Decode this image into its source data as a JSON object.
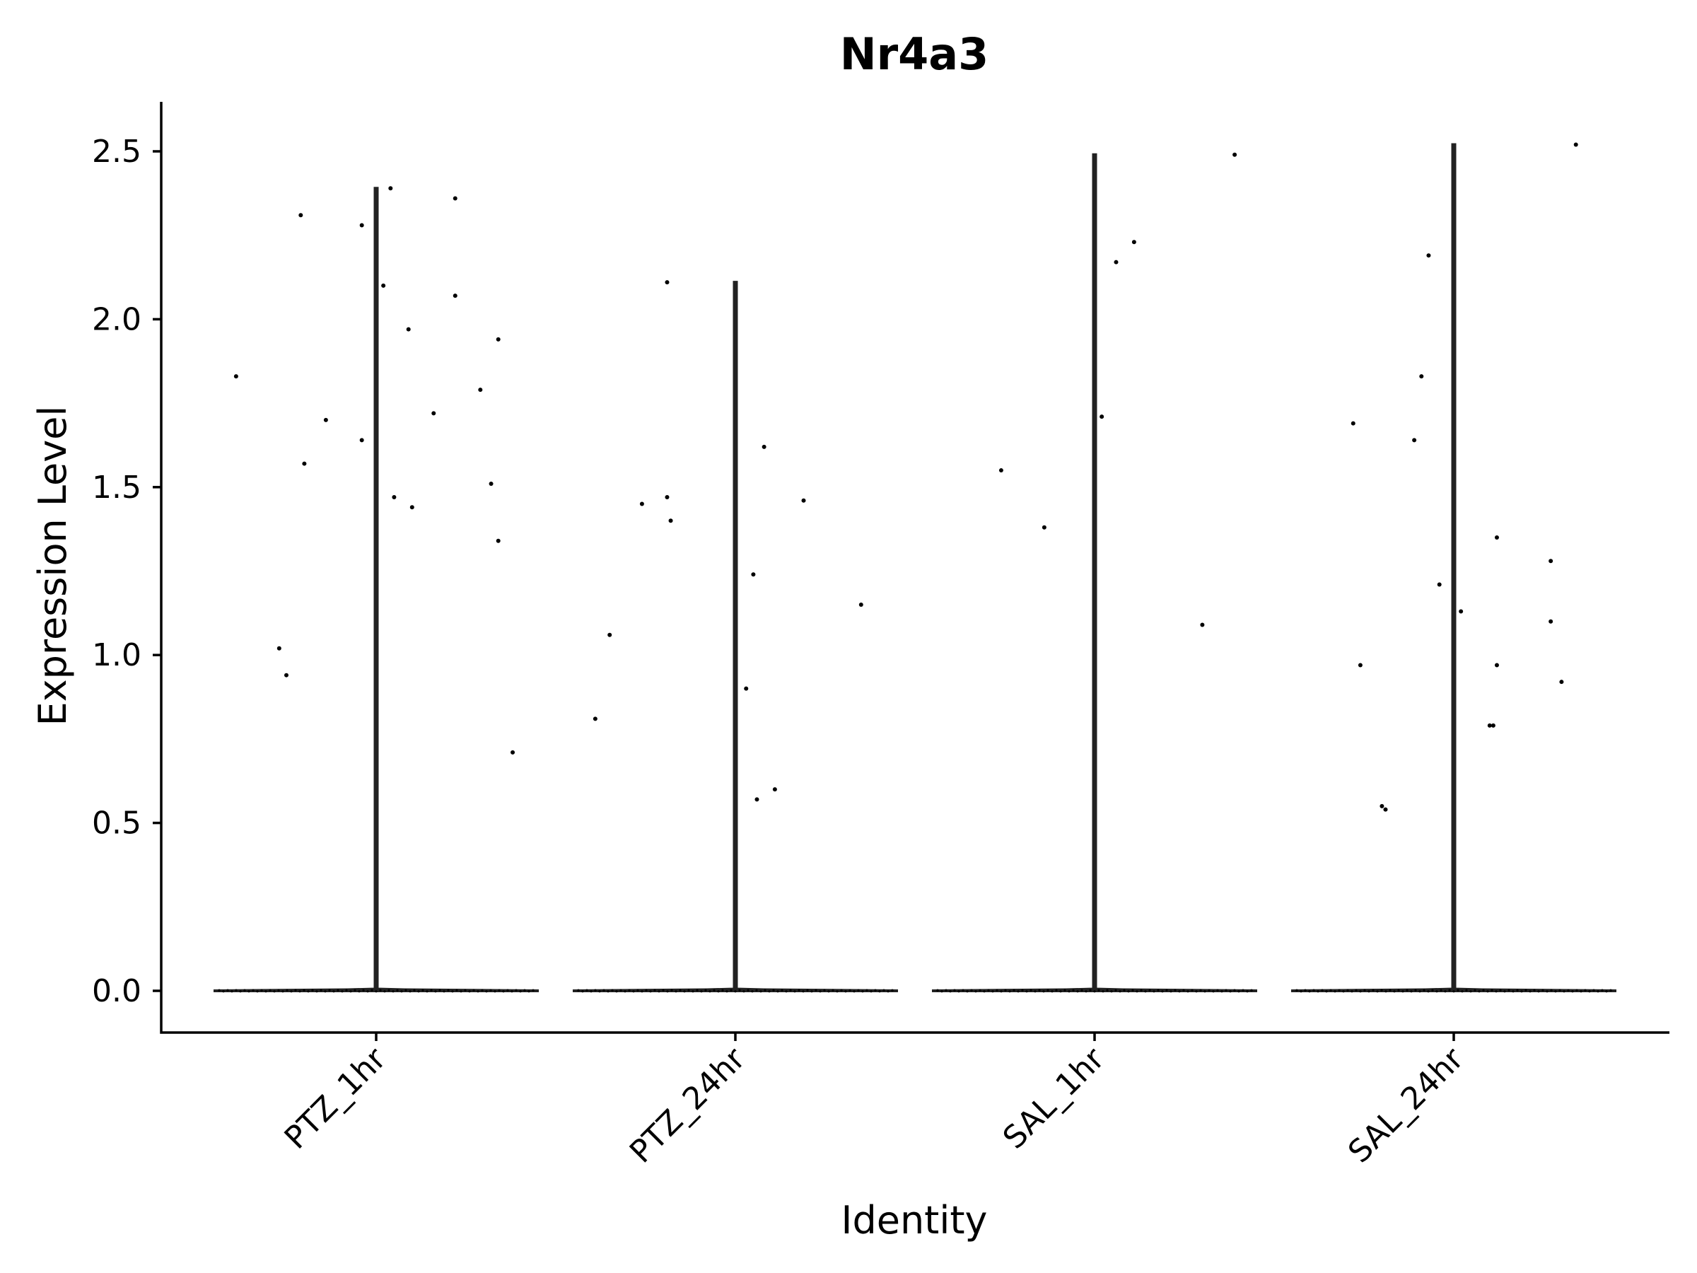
{
  "chart_data": {
    "type": "violin",
    "title": "Nr4a3",
    "xlabel": "Identity",
    "ylabel": "Expression Level",
    "ylim": [
      -0.12,
      2.65
    ],
    "yticks": [
      0.0,
      0.5,
      1.0,
      1.5,
      2.0,
      2.5
    ],
    "ytick_labels": [
      "0.0",
      "0.5",
      "1.0",
      "1.5",
      "2.0",
      "2.5"
    ],
    "grid": false,
    "legend": "none",
    "categories": [
      "PTZ_1hr",
      "PTZ_24hr",
      "SAL_1hr",
      "SAL_24hr"
    ],
    "series": [
      {
        "category": "PTZ_1hr",
        "max": 2.39,
        "points": [
          {
            "x_offset": -0.39,
            "y": 1.83
          },
          {
            "x_offset": -0.21,
            "y": 2.31
          },
          {
            "x_offset": -0.2,
            "y": 1.57
          },
          {
            "x_offset": -0.27,
            "y": 1.02
          },
          {
            "x_offset": -0.25,
            "y": 0.94
          },
          {
            "x_offset": -0.14,
            "y": 1.7
          },
          {
            "x_offset": -0.04,
            "y": 2.28
          },
          {
            "x_offset": -0.04,
            "y": 1.64
          },
          {
            "x_offset": 0.02,
            "y": 2.1
          },
          {
            "x_offset": 0.04,
            "y": 2.39
          },
          {
            "x_offset": 0.05,
            "y": 1.47
          },
          {
            "x_offset": 0.09,
            "y": 1.97
          },
          {
            "x_offset": 0.1,
            "y": 1.44
          },
          {
            "x_offset": 0.16,
            "y": 1.72
          },
          {
            "x_offset": 0.22,
            "y": 2.36
          },
          {
            "x_offset": 0.22,
            "y": 2.07
          },
          {
            "x_offset": 0.29,
            "y": 1.79
          },
          {
            "x_offset": 0.32,
            "y": 1.51
          },
          {
            "x_offset": 0.34,
            "y": 1.94
          },
          {
            "x_offset": 0.34,
            "y": 1.34
          },
          {
            "x_offset": 0.38,
            "y": 0.71
          }
        ]
      },
      {
        "category": "PTZ_24hr",
        "max": 2.11,
        "points": [
          {
            "x_offset": -0.39,
            "y": 0.81
          },
          {
            "x_offset": -0.35,
            "y": 1.06
          },
          {
            "x_offset": -0.26,
            "y": 1.45
          },
          {
            "x_offset": -0.19,
            "y": 2.11
          },
          {
            "x_offset": -0.19,
            "y": 1.47
          },
          {
            "x_offset": -0.18,
            "y": 1.4
          },
          {
            "x_offset": 0.03,
            "y": 0.9
          },
          {
            "x_offset": 0.05,
            "y": 1.24
          },
          {
            "x_offset": 0.06,
            "y": 0.57
          },
          {
            "x_offset": 0.08,
            "y": 1.62
          },
          {
            "x_offset": 0.11,
            "y": 0.6
          },
          {
            "x_offset": 0.19,
            "y": 1.46
          },
          {
            "x_offset": 0.35,
            "y": 1.15
          }
        ]
      },
      {
        "category": "SAL_1hr",
        "max": 2.49,
        "points": [
          {
            "x_offset": -0.26,
            "y": 1.55
          },
          {
            "x_offset": -0.14,
            "y": 1.38
          },
          {
            "x_offset": 0.02,
            "y": 1.71
          },
          {
            "x_offset": 0.06,
            "y": 2.17
          },
          {
            "x_offset": 0.11,
            "y": 2.23
          },
          {
            "x_offset": 0.3,
            "y": 1.09
          },
          {
            "x_offset": 0.39,
            "y": 2.49
          }
        ]
      },
      {
        "category": "SAL_24hr",
        "max": 2.52,
        "points": [
          {
            "x_offset": -0.28,
            "y": 1.69
          },
          {
            "x_offset": -0.26,
            "y": 0.97
          },
          {
            "x_offset": -0.2,
            "y": 0.55
          },
          {
            "x_offset": -0.19,
            "y": 0.54
          },
          {
            "x_offset": -0.11,
            "y": 1.64
          },
          {
            "x_offset": -0.09,
            "y": 1.83
          },
          {
            "x_offset": -0.07,
            "y": 2.19
          },
          {
            "x_offset": -0.04,
            "y": 1.21
          },
          {
            "x_offset": 0.02,
            "y": 1.13
          },
          {
            "x_offset": 0.12,
            "y": 1.35
          },
          {
            "x_offset": 0.12,
            "y": 0.97
          },
          {
            "x_offset": 0.1,
            "y": 0.79
          },
          {
            "x_offset": 0.11,
            "y": 0.79
          },
          {
            "x_offset": 0.27,
            "y": 1.28
          },
          {
            "x_offset": 0.27,
            "y": 1.1
          },
          {
            "x_offset": 0.3,
            "y": 0.92
          },
          {
            "x_offset": 0.34,
            "y": 2.52
          }
        ]
      }
    ]
  }
}
